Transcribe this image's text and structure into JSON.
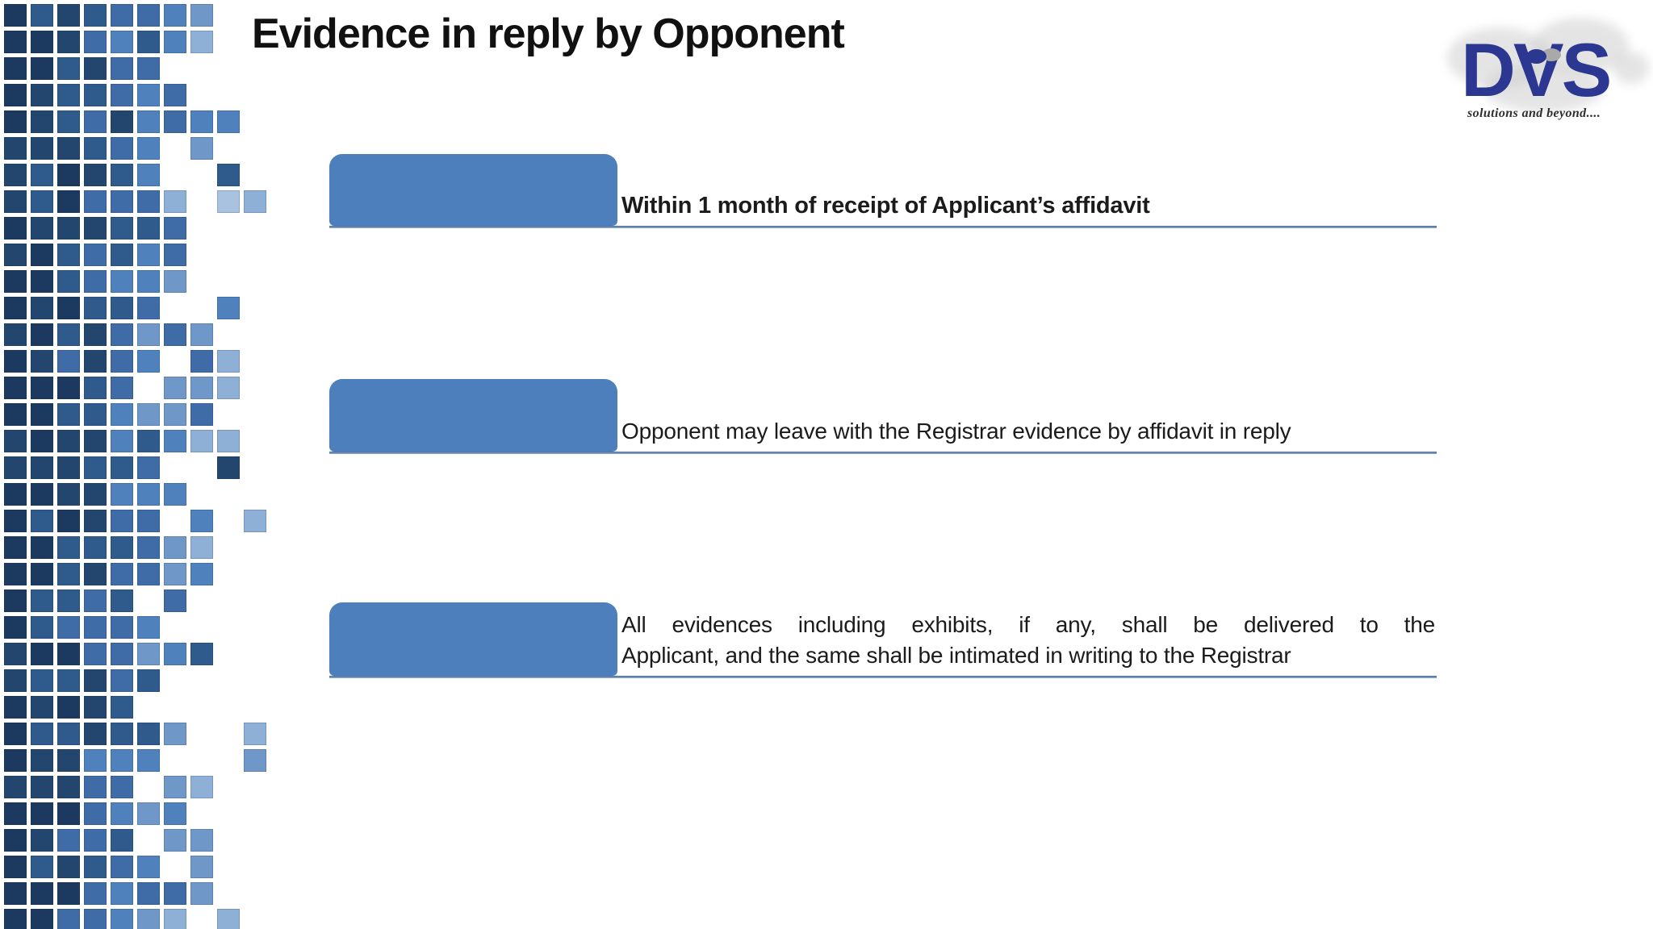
{
  "slide": {
    "title": "Evidence in reply by Opponent",
    "items": [
      {
        "lines": [
          "Within 1 month of receipt of Applicant’s affidavit"
        ]
      },
      {
        "lines": [
          "Opponent may leave with the Registrar evidence by affidavit in reply"
        ]
      },
      {
        "lines": [
          "All evidences including exhibits, if any, shall be delivered to the",
          "Applicant, and the same shall be intimated in writing to the Registrar"
        ]
      }
    ]
  },
  "logo": {
    "name": "DVS",
    "tagline": "solutions and beyond...."
  },
  "colors": {
    "title_text": "#111111",
    "tab_blue": "#4e7fbd",
    "rule_top": "#46699a",
    "rule_bottom": "#93afd0",
    "logo_blue": "#2c3792"
  },
  "decoration": {
    "mosaic": {
      "columns": 10,
      "rows": 35,
      "cell": 28,
      "gap": 5,
      "seed": 11,
      "palette": [
        "#1c3a60",
        "#23466e",
        "#2f5a8c",
        "#3f6ca6",
        "#4f81bd",
        "#6f97c8",
        "#8fb0d6",
        "#a9c2e0"
      ],
      "fill_prob": [
        1,
        1,
        1,
        1,
        0.96,
        0.88,
        0.74,
        0.52,
        0.3,
        0.12
      ]
    }
  }
}
